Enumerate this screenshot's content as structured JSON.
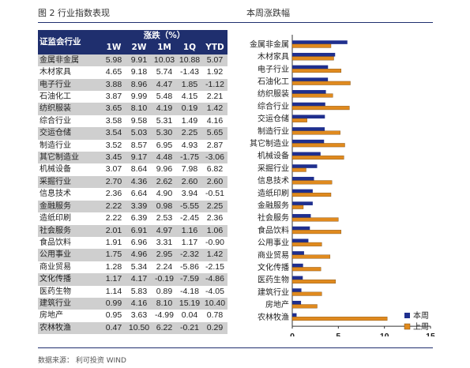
{
  "header": {
    "left_title": "图 2   行业指数表现",
    "right_title": "本周涨跌幅"
  },
  "footer": {
    "source": "数据来源：  利可投资  WIND"
  },
  "table": {
    "sector_header": "证监会行业",
    "group_header": "涨跌（%）",
    "columns": [
      "1W",
      "2W",
      "1M",
      "1Q",
      "YTD"
    ],
    "rows": [
      {
        "name": "金属非金属",
        "v": [
          "5.98",
          "9.91",
          "10.03",
          "10.88",
          "5.07"
        ]
      },
      {
        "name": "木材家具",
        "v": [
          "4.65",
          "9.18",
          "5.74",
          "-1.43",
          "1.92"
        ]
      },
      {
        "name": "电子行业",
        "v": [
          "3.88",
          "8.96",
          "4.47",
          "1.85",
          "-1.12"
        ]
      },
      {
        "name": "石油化工",
        "v": [
          "3.87",
          "9.99",
          "5.48",
          "4.15",
          "2.21"
        ]
      },
      {
        "name": "纺织服装",
        "v": [
          "3.65",
          "8.10",
          "4.19",
          "0.19",
          "1.42"
        ]
      },
      {
        "name": "综合行业",
        "v": [
          "3.58",
          "9.58",
          "5.31",
          "1.49",
          "4.16"
        ]
      },
      {
        "name": "交运仓储",
        "v": [
          "3.54",
          "5.03",
          "5.30",
          "2.25",
          "5.65"
        ]
      },
      {
        "name": "制造行业",
        "v": [
          "3.52",
          "8.57",
          "6.95",
          "4.93",
          "2.87"
        ]
      },
      {
        "name": "其它制造业",
        "v": [
          "3.45",
          "9.17",
          "4.48",
          "-1.75",
          "-3.06"
        ]
      },
      {
        "name": "机械设备",
        "v": [
          "3.07",
          "8.64",
          "9.96",
          "7.98",
          "6.82"
        ]
      },
      {
        "name": "采掘行业",
        "v": [
          "2.70",
          "4.36",
          "2.62",
          "2.60",
          "2.60"
        ]
      },
      {
        "name": "信息技术",
        "v": [
          "2.36",
          "6.64",
          "4.90",
          "3.94",
          "-0.51"
        ]
      },
      {
        "name": "金融服务",
        "v": [
          "2.22",
          "3.39",
          "0.98",
          "-5.55",
          "2.25"
        ]
      },
      {
        "name": "造纸印刷",
        "v": [
          "2.22",
          "6.39",
          "2.53",
          "-2.45",
          "2.36"
        ]
      },
      {
        "name": "社会服务",
        "v": [
          "2.01",
          "6.91",
          "4.97",
          "1.16",
          "1.06"
        ]
      },
      {
        "name": "食品饮料",
        "v": [
          "1.91",
          "6.96",
          "3.31",
          "1.17",
          "-0.90"
        ]
      },
      {
        "name": "公用事业",
        "v": [
          "1.75",
          "4.96",
          "2.95",
          "-2.32",
          "1.42"
        ]
      },
      {
        "name": "商业贸易",
        "v": [
          "1.28",
          "5.34",
          "2.24",
          "-5.86",
          "-2.15"
        ]
      },
      {
        "name": "文化传播",
        "v": [
          "1.17",
          "4.17",
          "-0.19",
          "-7.59",
          "-4.86"
        ]
      },
      {
        "name": "医药生物",
        "v": [
          "1.14",
          "5.83",
          "0.89",
          "-4.18",
          "-4.05"
        ]
      },
      {
        "name": "建筑行业",
        "v": [
          "0.99",
          "4.16",
          "8.10",
          "15.19",
          "10.40"
        ]
      },
      {
        "name": "房地产",
        "v": [
          "0.95",
          "3.63",
          "-4.99",
          "0.04",
          "0.78"
        ]
      },
      {
        "name": "农林牧渔",
        "v": [
          "0.47",
          "10.50",
          "6.22",
          "-0.21",
          "0.29"
        ]
      }
    ]
  },
  "chart_data": {
    "type": "bar",
    "orientation": "horizontal",
    "title": "本周涨跌幅",
    "categories": [
      "金属非金属",
      "木材家具",
      "电子行业",
      "石油化工",
      "纺织服装",
      "综合行业",
      "交运仓储",
      "制造行业",
      "其它制造业",
      "机械设备",
      "采掘行业",
      "信息技术",
      "造纸印刷",
      "金融服务",
      "社会服务",
      "食品饮料",
      "公用事业",
      "商业贸易",
      "文化传播",
      "医药生物",
      "建筑行业",
      "房地产",
      "农林牧渔"
    ],
    "series": [
      {
        "name": "本周",
        "color": "#1f2f8e",
        "values": [
          5.98,
          4.65,
          3.88,
          3.87,
          3.65,
          3.58,
          3.54,
          3.52,
          3.45,
          3.07,
          2.7,
          2.36,
          2.22,
          2.22,
          2.01,
          1.91,
          1.75,
          1.28,
          1.17,
          1.14,
          0.99,
          0.95,
          0.47
        ]
      },
      {
        "name": "上周",
        "color": "#e08a1e",
        "values": [
          4.2,
          4.5,
          5.3,
          6.3,
          4.4,
          6.2,
          1.6,
          5.2,
          5.7,
          5.6,
          1.5,
          4.3,
          4.2,
          1.2,
          5.0,
          5.3,
          3.2,
          4.1,
          3.1,
          4.7,
          3.2,
          2.7,
          10.3
        ]
      }
    ],
    "xlim": [
      0,
      15
    ],
    "xticks": [
      "0",
      "5",
      "10",
      "15"
    ],
    "legend_position": "lower-right",
    "grid": false
  }
}
